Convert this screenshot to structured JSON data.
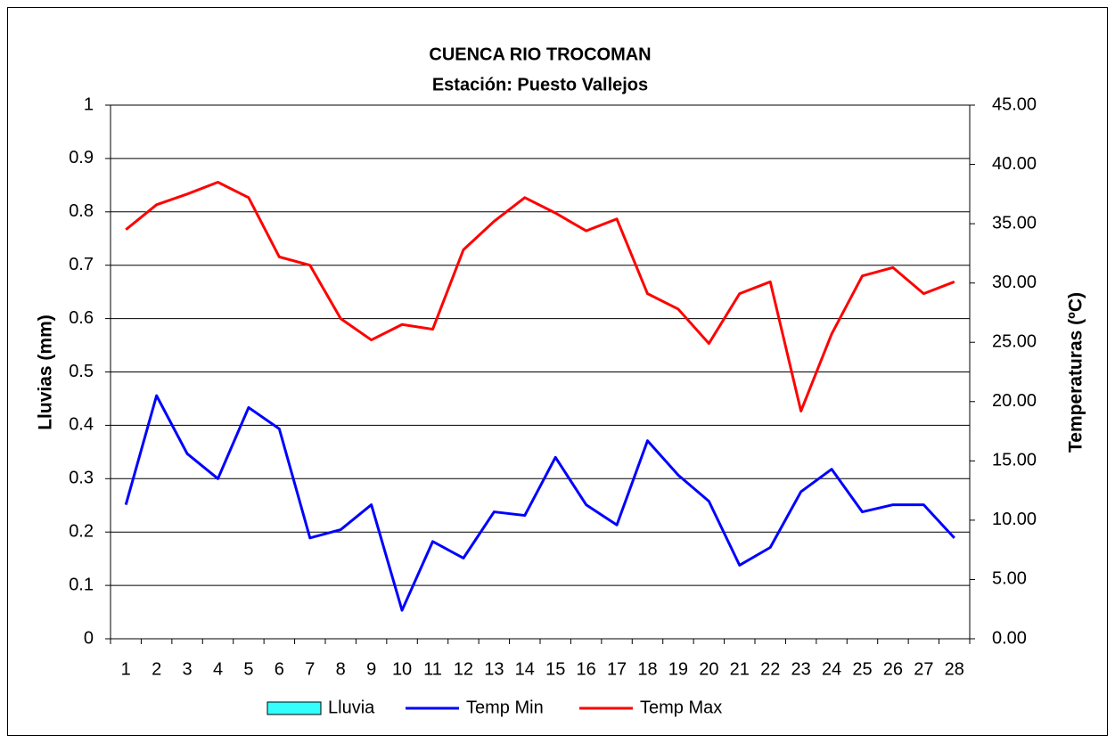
{
  "chart_data": {
    "type": "line",
    "title": "CUENCA RIO TROCOMAN",
    "subtitle": "Estación: Puesto Vallejos",
    "y_label": "Lluvias (mm)",
    "y2_label": "Temperaturas (ºC)",
    "categories": [
      "1",
      "2",
      "3",
      "4",
      "5",
      "6",
      "7",
      "8",
      "9",
      "10",
      "11",
      "12",
      "13",
      "14",
      "15",
      "16",
      "17",
      "18",
      "19",
      "20",
      "21",
      "22",
      "23",
      "24",
      "25",
      "26",
      "27",
      "28"
    ],
    "ylim": [
      0,
      1
    ],
    "yticks": [
      0,
      0.1,
      0.2,
      0.3,
      0.4,
      0.5,
      0.6,
      0.7,
      0.8,
      0.9,
      1
    ],
    "y2lim": [
      0,
      45
    ],
    "y2ticks": [
      {
        "value": 0,
        "label": "0.00"
      },
      {
        "value": 5,
        "label": "5.00"
      },
      {
        "value": 10,
        "label": "10.00"
      },
      {
        "value": 15,
        "label": "15.00"
      },
      {
        "value": 20,
        "label": "20.00"
      },
      {
        "value": 25,
        "label": "25.00"
      },
      {
        "value": 30,
        "label": "30.00"
      },
      {
        "value": 35,
        "label": "35.00"
      },
      {
        "value": 40,
        "label": "40.00"
      },
      {
        "value": 45,
        "label": "45.00"
      }
    ],
    "grid": true,
    "legend": "bottom",
    "series": [
      {
        "name": "Lluvia",
        "type": "bar",
        "color": "#33ffff",
        "values": [
          0,
          0,
          0,
          0,
          0,
          0,
          0,
          0,
          0,
          0,
          0,
          0,
          0,
          0,
          0,
          0,
          0,
          0,
          0,
          0,
          0,
          0,
          0,
          0,
          0,
          0,
          0,
          0
        ]
      },
      {
        "name": "Temp Min",
        "color": "#0000ff",
        "axis": "y2",
        "values": [
          11.3,
          20.5,
          15.6,
          13.5,
          19.5,
          17.7,
          8.5,
          9.2,
          11.3,
          2.4,
          8.2,
          6.8,
          10.7,
          10.4,
          15.3,
          11.3,
          9.6,
          16.7,
          13.8,
          11.6,
          6.2,
          7.7,
          12.4,
          14.3,
          10.7,
          11.3,
          11.3,
          8.5
        ]
      },
      {
        "name": "Temp Max",
        "color": "#ff0000",
        "axis": "y2",
        "values": [
          34.5,
          36.6,
          37.5,
          38.5,
          37.2,
          32.2,
          31.5,
          27.0,
          25.2,
          26.5,
          26.1,
          32.8,
          35.2,
          37.2,
          35.9,
          34.4,
          35.4,
          29.1,
          27.8,
          24.9,
          29.1,
          30.1,
          19.2,
          25.7,
          30.6,
          31.3,
          29.1,
          30.1
        ]
      }
    ]
  }
}
